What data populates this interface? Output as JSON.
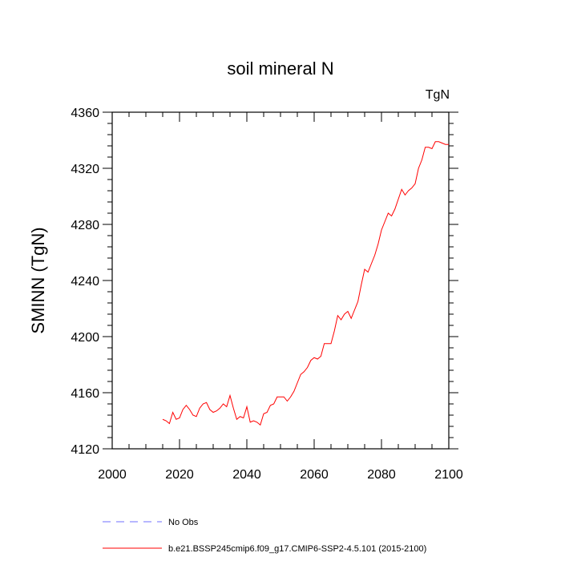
{
  "chart_data": {
    "type": "line",
    "title": "soil mineral N",
    "units": "TgN",
    "xlabel": "",
    "ylabel": "SMINN  (TgN)",
    "xlim": [
      2000,
      2100
    ],
    "ylim": [
      4120,
      4360
    ],
    "xticks": [
      2000,
      2020,
      2040,
      2060,
      2080,
      2100
    ],
    "yticks": [
      4120,
      4160,
      4200,
      4240,
      4280,
      4320,
      4360
    ],
    "grid": false,
    "legend_position": "bottom",
    "series": [
      {
        "name": "b.e21.BSSP245cmip6.f09_g17.CMIP6-SSP2-4.5.101 (2015-2100)",
        "color": "#ff0000",
        "style": "solid",
        "x": [
          2015,
          2016,
          2017,
          2018,
          2019,
          2020,
          2021,
          2022,
          2023,
          2024,
          2025,
          2026,
          2027,
          2028,
          2029,
          2030,
          2031,
          2032,
          2033,
          2034,
          2035,
          2036,
          2037,
          2038,
          2039,
          2040,
          2041,
          2042,
          2043,
          2044,
          2045,
          2046,
          2047,
          2048,
          2049,
          2050,
          2051,
          2052,
          2053,
          2054,
          2055,
          2056,
          2057,
          2058,
          2059,
          2060,
          2061,
          2062,
          2063,
          2064,
          2065,
          2066,
          2067,
          2068,
          2069,
          2070,
          2071,
          2072,
          2073,
          2074,
          2075,
          2076,
          2077,
          2078,
          2079,
          2080,
          2081,
          2082,
          2083,
          2084,
          2085,
          2086,
          2087,
          2088,
          2089,
          2090,
          2091,
          2092,
          2093,
          2094,
          2095,
          2096,
          2097,
          2098,
          2099,
          2100
        ],
        "y": [
          4141,
          4140,
          4138,
          4146,
          4141,
          4142,
          4148,
          4151,
          4148,
          4144,
          4143,
          4149,
          4152,
          4153,
          4148,
          4146,
          4147,
          4149,
          4152,
          4150,
          4158,
          4149,
          4141,
          4143,
          4142,
          4150,
          4139,
          4140,
          4139,
          4137,
          4145,
          4146,
          4151,
          4152,
          4157,
          4157,
          4157,
          4154,
          4157,
          4161,
          4167,
          4173,
          4175,
          4178,
          4183,
          4185,
          4184,
          4186,
          4195,
          4195,
          4195,
          4204,
          4215,
          4212,
          4216,
          4218,
          4213,
          4219,
          4225,
          4237,
          4248,
          4246,
          4252,
          4258,
          4266,
          4276,
          4282,
          4288,
          4286,
          4291,
          4298,
          4305,
          4301,
          4304,
          4306,
          4309,
          4320,
          4326,
          4335,
          4335,
          4334,
          4339,
          4339,
          4338,
          4337,
          4337
        ]
      }
    ],
    "legend": [
      {
        "label": "No Obs",
        "color": "#6f6fff",
        "style": "dashed"
      },
      {
        "label": "b.e21.BSSP245cmip6.f09_g17.CMIP6-SSP2-4.5.101 (2015-2100)",
        "color": "#ff0000",
        "style": "solid"
      }
    ]
  }
}
